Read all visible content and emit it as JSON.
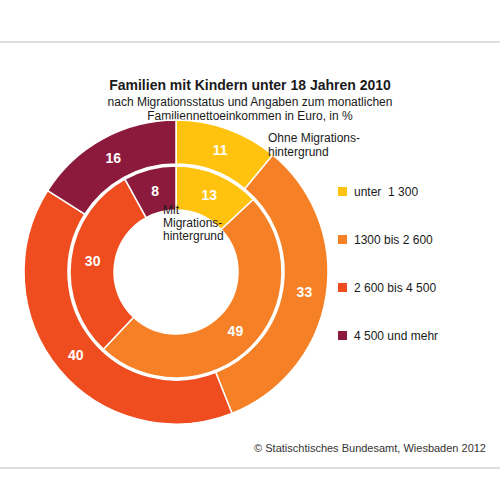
{
  "chart_data": {
    "type": "pie",
    "title": "Familien mit Kindern unter 18 Jahren 2010",
    "subtitle": "nach Migrationsstatus und Angaben zum monatlichen\nFamiliennettoeinkommen in Euro, in %",
    "categories": [
      "unter  1 300",
      "1300 bis 2 600",
      "2 600 bis 4 500",
      "4 500 und mehr"
    ],
    "colors": [
      "#ffc20e",
      "#f58025",
      "#ef4d1f",
      "#8c1a3c"
    ],
    "series": [
      {
        "name": "Ohne Migrations-\nhintergrund",
        "values": [
          11,
          33,
          40,
          16
        ]
      },
      {
        "name": "Mit\nMigrations-\nhintergrund",
        "values": [
          13,
          49,
          30,
          8
        ]
      }
    ],
    "data_labels": true,
    "legend": "right",
    "source": "© Statischtisches Bundesamt, Wiesbaden 2012"
  }
}
